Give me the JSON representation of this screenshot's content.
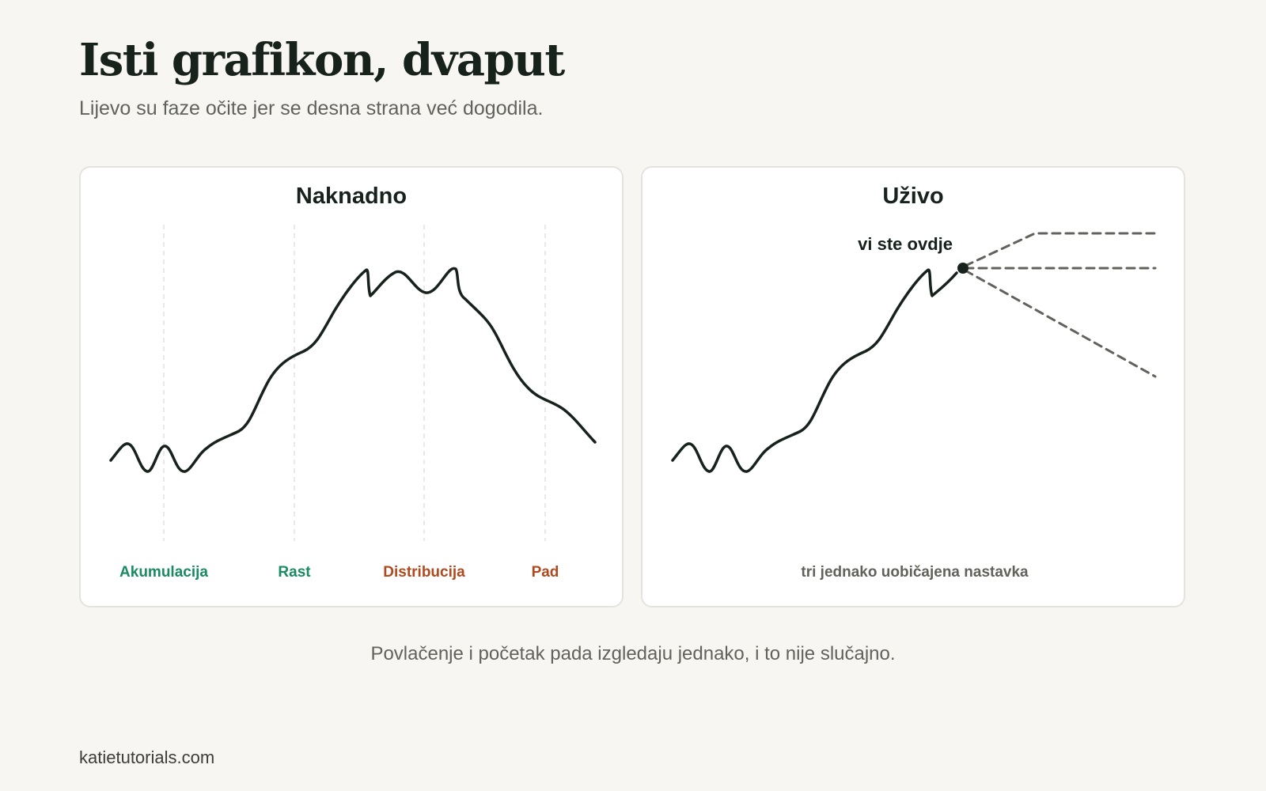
{
  "header": {
    "title": "Isti grafikon, dvaput",
    "subtitle": "Lijevo su faze očite jer se desna strana već dogodila."
  },
  "panels": {
    "left": {
      "title": "Naknadno",
      "phases": [
        {
          "label": "Akumulacija",
          "color": "#1a8a62"
        },
        {
          "label": "Rast",
          "color": "#1a8a62"
        },
        {
          "label": "Distribucija",
          "color": "#b04a1e"
        },
        {
          "label": "Pad",
          "color": "#b04a1e"
        }
      ]
    },
    "right": {
      "title": "Uživo",
      "marker_label": "vi ste ovdje",
      "footer_label": "tri jednako uobičajena nastavka"
    }
  },
  "caption": "Povlačenje i početak pada izgledaju jednako, i to nije slučajno.",
  "footer": {
    "source": "katietutorials.com"
  },
  "colors": {
    "background": "#f7f6f2",
    "line": "#17221d",
    "scenario": "#62625c",
    "accumulation": "#1a8a62",
    "distribution": "#b04a1e"
  }
}
